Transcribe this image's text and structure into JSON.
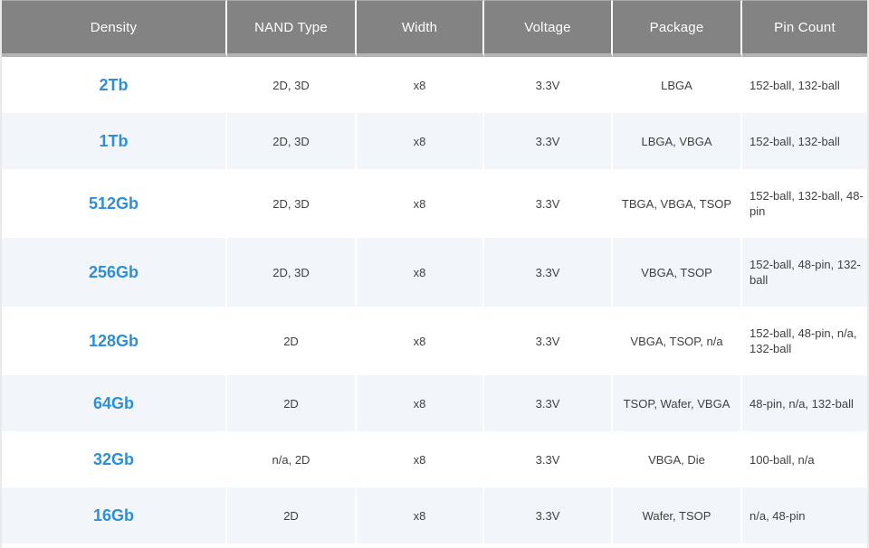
{
  "colors": {
    "accent_link_blue": "#2e8fd7",
    "header_gray": "#838383",
    "header_strip_gray": "#b3b3b3",
    "alt_row_blue": "#f2f6fa",
    "body_text": "#404040"
  },
  "table": {
    "columns": [
      {
        "label": "Density"
      },
      {
        "label": "NAND Type"
      },
      {
        "label": "Width"
      },
      {
        "label": "Voltage"
      },
      {
        "label": "Package"
      },
      {
        "label": "Pin Count"
      }
    ],
    "rows": [
      {
        "density": "2Tb",
        "nand_type": "2D, 3D",
        "width": "x8",
        "voltage": "3.3V",
        "package": "LBGA",
        "pin_count": "152-ball, 132-ball"
      },
      {
        "density": "1Tb",
        "nand_type": "2D, 3D",
        "width": "x8",
        "voltage": "3.3V",
        "package": "LBGA, VBGA",
        "pin_count": "152-ball, 132-ball"
      },
      {
        "density": "512Gb",
        "nand_type": "2D, 3D",
        "width": "x8",
        "voltage": "3.3V",
        "package": "TBGA, VBGA, TSOP",
        "pin_count": "152-ball, 132-ball, 48-pin"
      },
      {
        "density": "256Gb",
        "nand_type": "2D, 3D",
        "width": "x8",
        "voltage": "3.3V",
        "package": "VBGA, TSOP",
        "pin_count": "152-ball, 48-pin, 132-ball"
      },
      {
        "density": "128Gb",
        "nand_type": "2D",
        "width": "x8",
        "voltage": "3.3V",
        "package": "VBGA, TSOP, n/a",
        "pin_count": "152-ball, 48-pin, n/a, 132-ball"
      },
      {
        "density": "64Gb",
        "nand_type": "2D",
        "width": "x8",
        "voltage": "3.3V",
        "package": "TSOP, Wafer, VBGA",
        "pin_count": "48-pin, n/a, 132-ball"
      },
      {
        "density": "32Gb",
        "nand_type": "n/a, 2D",
        "width": "x8",
        "voltage": "3.3V",
        "package": "VBGA, Die",
        "pin_count": "100-ball, n/a"
      },
      {
        "density": "16Gb",
        "nand_type": "2D",
        "width": "x8",
        "voltage": "3.3V",
        "package": "Wafer, TSOP",
        "pin_count": "n/a, 48-pin"
      }
    ]
  }
}
